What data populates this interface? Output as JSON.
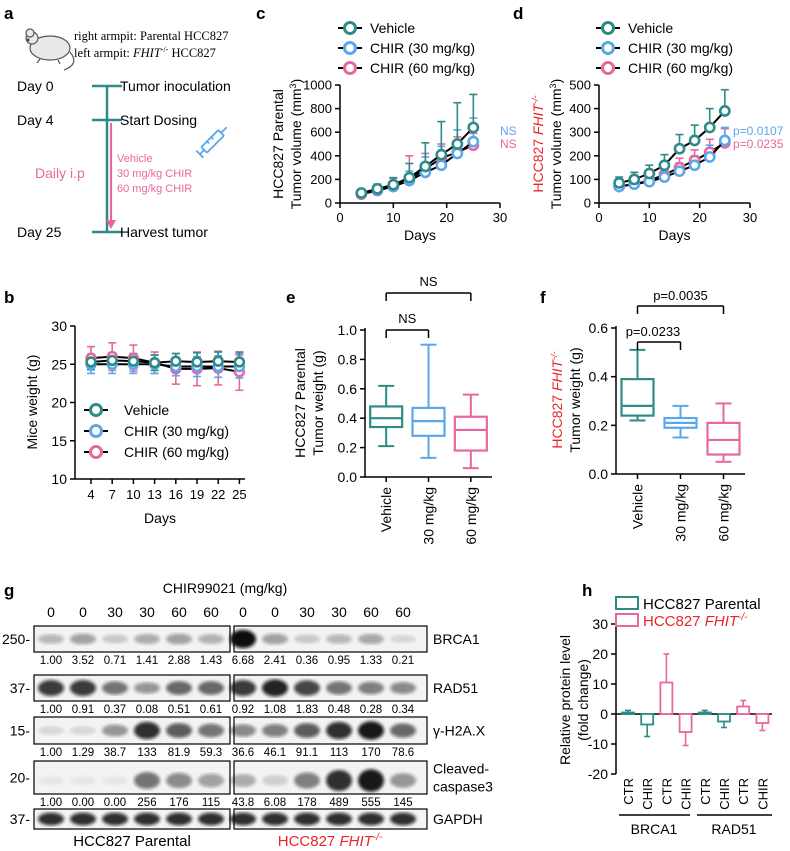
{
  "colors": {
    "vehicle": "#2e8b88",
    "c30": "#5ba7ee",
    "c60": "#e8679e",
    "red": "#e8262a",
    "pink": "#e8679e"
  },
  "panels": {
    "a": {
      "label": "a",
      "mouse_line1": "right armpit: Parental HCC827",
      "mouse_line2_prefix": "left armpit: ",
      "mouse_line2_gene": "FHIT",
      "mouse_line2_sup": "-/-",
      "mouse_line2_suffix": " HCC827",
      "day0": "Day 0",
      "day0_event": "Tumor inoculation",
      "day4": "Day 4",
      "day4_event": "Start Dosing",
      "daily": "Daily  i.p",
      "doses": [
        "Vehicle",
        "30 mg/kg CHIR",
        "60 mg/kg CHIR"
      ],
      "day25": "Day 25",
      "day25_event": "Harvest tumor"
    },
    "b": {
      "label": "b"
    },
    "c": {
      "label": "c"
    },
    "d": {
      "label": "d"
    },
    "e": {
      "label": "e"
    },
    "f": {
      "label": "f"
    },
    "g": {
      "label": "g"
    },
    "h": {
      "label": "h"
    }
  },
  "chart_data": [
    {
      "id": "c",
      "type": "line",
      "title": "",
      "xlabel": "Days",
      "ylabel_line1": "HCC827 Parental",
      "ylabel_line2": "Tumor volume (mm",
      "ylabel_sup": "3",
      "ylabel_end": ")",
      "x": [
        4,
        7,
        10,
        13,
        16,
        19,
        22,
        25
      ],
      "xticks": [
        0,
        10,
        20,
        30
      ],
      "yticks": [
        0,
        200,
        400,
        600,
        800,
        1000
      ],
      "xlim": [
        0,
        30
      ],
      "ylim": [
        0,
        1000
      ],
      "legend": [
        "Vehicle",
        "CHIR (30 mg/kg)",
        "CHIR (60 mg/kg)"
      ],
      "series": [
        {
          "name": "Vehicle",
          "x": [
            4,
            7,
            10,
            13,
            16,
            19,
            22,
            25
          ],
          "values": [
            85,
            120,
            155,
            215,
            310,
            410,
            500,
            640
          ],
          "err": [
            25,
            40,
            60,
            120,
            200,
            280,
            350,
            280
          ]
        },
        {
          "name": "CHIR (30 mg/kg)",
          "x": [
            4,
            7,
            10,
            13,
            16,
            19,
            22,
            25
          ],
          "values": [
            80,
            110,
            140,
            190,
            260,
            320,
            420,
            520
          ],
          "err": [
            20,
            30,
            50,
            80,
            130,
            160,
            200,
            200
          ]
        },
        {
          "name": "CHIR (60 mg/kg)",
          "x": [
            4,
            7,
            10,
            13,
            16,
            19,
            22,
            25
          ],
          "values": [
            75,
            105,
            140,
            200,
            290,
            380,
            430,
            490
          ],
          "err": [
            20,
            40,
            70,
            200,
            130,
            120,
            130,
            100
          ]
        }
      ],
      "annotations": [
        "NS",
        "NS"
      ]
    },
    {
      "id": "d",
      "type": "line",
      "xlabel": "Days",
      "ylabel_gene": "HCC827 ",
      "ylabel_gene_italic": "FHIT",
      "ylabel_gene_sup": "-/-",
      "ylabel_line2": "Tumor volume (mm",
      "ylabel_sup": "3",
      "ylabel_end": ")",
      "x": [
        4,
        7,
        10,
        13,
        16,
        19,
        22,
        25
      ],
      "xticks": [
        0,
        10,
        20,
        30
      ],
      "yticks": [
        0,
        100,
        200,
        300,
        400,
        500
      ],
      "xlim": [
        0,
        30
      ],
      "ylim": [
        0,
        500
      ],
      "legend": [
        "Vehicle",
        "CHIR (30 mg/kg)",
        "CHIR (60 mg/kg)"
      ],
      "series": [
        {
          "name": "Vehicle",
          "x": [
            4,
            7,
            10,
            13,
            16,
            19,
            22,
            25
          ],
          "values": [
            85,
            100,
            125,
            160,
            230,
            265,
            320,
            390
          ],
          "err": [
            25,
            30,
            35,
            45,
            60,
            65,
            80,
            90
          ]
        },
        {
          "name": "CHIR (30 mg/kg)",
          "x": [
            4,
            7,
            10,
            13,
            16,
            19,
            22,
            25
          ],
          "values": [
            70,
            80,
            90,
            110,
            135,
            160,
            195,
            265
          ],
          "err": [
            20,
            20,
            25,
            30,
            35,
            40,
            50,
            55
          ]
        },
        {
          "name": "CHIR (60 mg/kg)",
          "x": [
            4,
            7,
            10,
            13,
            16,
            19,
            22,
            25
          ],
          "values": [
            70,
            80,
            95,
            120,
            150,
            180,
            215,
            255
          ],
          "err": [
            20,
            25,
            30,
            35,
            40,
            45,
            55,
            60
          ]
        }
      ],
      "annotations": [
        "p=0.0107",
        "p=0.0235"
      ]
    },
    {
      "id": "b",
      "type": "line",
      "xlabel": "Days",
      "ylabel": "Mice weight (g)",
      "x": [
        4,
        7,
        10,
        13,
        16,
        19,
        22,
        25
      ],
      "xtick_labels": [
        "4",
        "7",
        "10",
        "13",
        "16",
        "19",
        "22",
        "25"
      ],
      "yticks": [
        10,
        15,
        20,
        25,
        30
      ],
      "ylim": [
        10,
        30
      ],
      "legend": [
        "Vehicle",
        "CHIR (30 mg/kg)",
        "CHIR (60 mg/kg)"
      ],
      "series": [
        {
          "name": "Vehicle",
          "values": [
            25.3,
            25.5,
            25.4,
            25.2,
            25.4,
            25.3,
            25.4,
            25.3
          ],
          "err": [
            1.0,
            1.0,
            1.0,
            1.0,
            1.0,
            1.2,
            1.2,
            1.3
          ]
        },
        {
          "name": "CHIR (30 mg/kg)",
          "values": [
            25.0,
            25.0,
            25.0,
            25.0,
            24.7,
            24.7,
            24.7,
            24.7
          ],
          "err": [
            1.2,
            1.2,
            1.2,
            1.2,
            1.2,
            1.3,
            1.4,
            1.5
          ]
        },
        {
          "name": "CHIR (60 mg/kg)",
          "values": [
            25.8,
            26.0,
            25.8,
            25.2,
            24.4,
            24.4,
            24.5,
            24.0
          ],
          "err": [
            1.5,
            1.8,
            1.7,
            1.4,
            2.0,
            2.2,
            2.2,
            2.4
          ]
        }
      ]
    },
    {
      "id": "e",
      "type": "box",
      "ylabel_line1": "HCC827 Parental",
      "ylabel_line2": "Tumor weight (g)",
      "categories": [
        "Vehicle",
        "30 mg/kg",
        "60 mg/kg"
      ],
      "yticks": [
        0.0,
        0.2,
        0.4,
        0.6,
        0.8,
        1.0
      ],
      "ylim": [
        0,
        1.0
      ],
      "boxes": [
        {
          "min": 0.21,
          "q1": 0.34,
          "median": 0.4,
          "q3": 0.48,
          "max": 0.62
        },
        {
          "min": 0.13,
          "q1": 0.28,
          "median": 0.38,
          "q3": 0.47,
          "max": 0.9
        },
        {
          "min": 0.06,
          "q1": 0.18,
          "median": 0.32,
          "q3": 0.41,
          "max": 0.56
        }
      ],
      "annotations": [
        "NS",
        "NS"
      ]
    },
    {
      "id": "f",
      "type": "box",
      "ylabel_gene": "HCC827 ",
      "ylabel_gene_italic": "FHIT",
      "ylabel_gene_sup": "-/-",
      "ylabel_line2": "Tumor weight (g)",
      "categories": [
        "Vehicle",
        "30 mg/kg",
        "60 mg/kg"
      ],
      "yticks": [
        0.0,
        0.2,
        0.4,
        0.6
      ],
      "ylim": [
        0,
        0.6
      ],
      "boxes": [
        {
          "min": 0.22,
          "q1": 0.24,
          "median": 0.28,
          "q3": 0.39,
          "max": 0.51
        },
        {
          "min": 0.15,
          "q1": 0.19,
          "median": 0.21,
          "q3": 0.23,
          "max": 0.28
        },
        {
          "min": 0.05,
          "q1": 0.08,
          "median": 0.14,
          "q3": 0.21,
          "max": 0.29
        }
      ],
      "annotations": [
        "p=0.0233",
        "p=0.0035"
      ]
    },
    {
      "id": "h",
      "type": "bar",
      "ylabel_line1": "Relative protein level",
      "ylabel_line2": "(fold change)",
      "categories": [
        "CTR",
        "CHIR",
        "CTR",
        "CHIR",
        "CTR",
        "CHIR",
        "CTR",
        "CHIR"
      ],
      "values": [
        0.5,
        -3.5,
        10.5,
        -6.0,
        0.5,
        -2.5,
        2.5,
        -3.0
      ],
      "err": [
        0.7,
        4.0,
        9.5,
        4.5,
        0.7,
        2.0,
        2.0,
        2.5
      ],
      "yticks": [
        -20,
        -10,
        0,
        10,
        20,
        30
      ],
      "ylim": [
        -20,
        30
      ],
      "groups": [
        "BRCA1",
        "RAD51"
      ],
      "legend": [
        "HCC827 Parental",
        "HCC827 "
      ],
      "legend_gene": "FHIT",
      "legend_sup": "-/-"
    }
  ],
  "blot": {
    "title": "CHIR99021 (mg/kg)",
    "doses": [
      "0",
      "0",
      "30",
      "30",
      "60",
      "60",
      "0",
      "0",
      "30",
      "30",
      "60",
      "60"
    ],
    "rows": [
      {
        "name": "BRCA1",
        "mw": "250-",
        "values": [
          "1.00",
          "3.52",
          "0.71",
          "1.41",
          "2.88",
          "1.43",
          "6.68",
          "2.41",
          "0.36",
          "0.95",
          "1.33",
          "0.21"
        ]
      },
      {
        "name": "RAD51",
        "mw": "37-",
        "values": [
          "1.00",
          "0.91",
          "0.37",
          "0.08",
          "0.51",
          "0.61",
          "0.92",
          "1.08",
          "1.83",
          "0.48",
          "0.28",
          "0.34"
        ]
      },
      {
        "name": "γ-H2A.X",
        "mw": "15-",
        "values": [
          "1.00",
          "1.29",
          "38.7",
          "133",
          "81.9",
          "59.3",
          "36.6",
          "46.1",
          "91.1",
          "113",
          "170",
          "78.6"
        ]
      },
      {
        "name": "Cleaved-",
        "name2": "caspase3",
        "mw": "20-",
        "values": [
          "1.00",
          "0.00",
          "0.00",
          "256",
          "176",
          "115",
          "43.8",
          "6.08",
          "178",
          "489",
          "555",
          "145"
        ]
      },
      {
        "name": "GAPDH",
        "mw": "37-",
        "values": []
      }
    ],
    "group1": "HCC827 Parental",
    "group2_prefix": "HCC827 ",
    "group2_gene": "FHIT",
    "group2_sup": "-/-"
  }
}
